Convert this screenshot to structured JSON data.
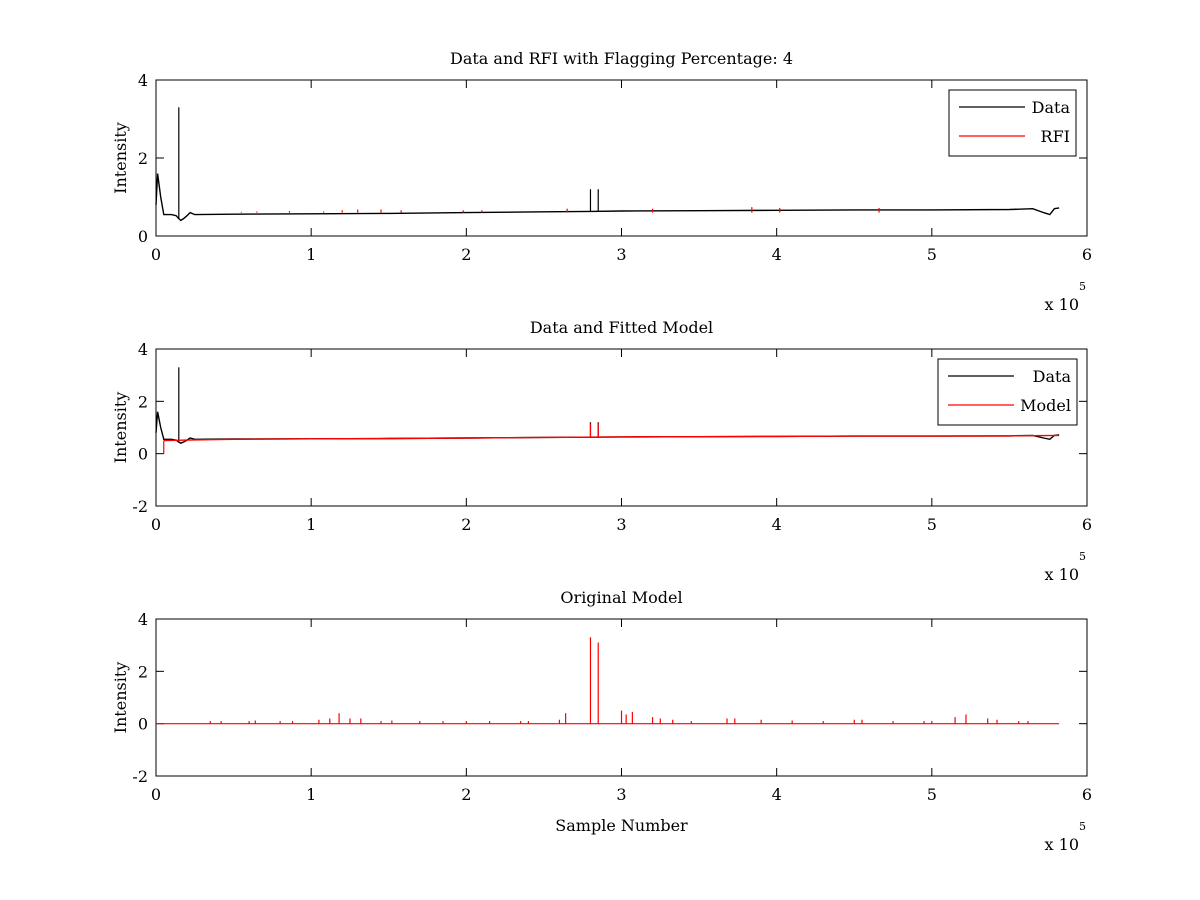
{
  "colors": {
    "data": "#000000",
    "rfi": "#ff0000",
    "axes": "#000000",
    "background": "#ffffff"
  },
  "chart_data": [
    {
      "type": "line",
      "title": "Data and RFI with Flagging Percentage: 4",
      "xlabel": "",
      "ylabel": "Intensity",
      "xlim": [
        0,
        6
      ],
      "ylim": [
        0,
        4
      ],
      "xticks": [
        "0",
        "1",
        "2",
        "3",
        "4",
        "5",
        "6"
      ],
      "yticks": [
        "0",
        "2",
        "4"
      ],
      "x_multiplier": {
        "base": "x 10",
        "exponent": "5"
      },
      "legend": {
        "position": "top-right",
        "entries": [
          "Data",
          "RFI"
        ]
      },
      "series": [
        {
          "name": "Data",
          "color": "#000000",
          "x": [
            0,
            0.01,
            0.03,
            0.05,
            0.1,
            0.13,
            0.145,
            0.16,
            0.18,
            0.2,
            0.22,
            0.25,
            0.5,
            1.0,
            1.5,
            2.0,
            2.5,
            2.8,
            3.0,
            3.5,
            4.0,
            4.5,
            5.0,
            5.5,
            5.65,
            5.72,
            5.76,
            5.79,
            5.82
          ],
          "y": [
            0.8,
            1.6,
            1.0,
            0.55,
            0.55,
            0.52,
            0.45,
            0.4,
            0.45,
            0.52,
            0.6,
            0.55,
            0.56,
            0.57,
            0.58,
            0.6,
            0.62,
            0.63,
            0.64,
            0.65,
            0.66,
            0.67,
            0.67,
            0.68,
            0.7,
            0.6,
            0.55,
            0.7,
            0.72
          ],
          "spikes": [
            {
              "x": 0.147,
              "y": 3.3
            },
            {
              "x": 2.8,
              "y": 1.2
            },
            {
              "x": 2.85,
              "y": 1.2
            }
          ]
        },
        {
          "name": "RFI",
          "color": "#ff0000",
          "spikes": [
            {
              "x": 0.55,
              "y": 0.62
            },
            {
              "x": 0.65,
              "y": 0.63
            },
            {
              "x": 0.86,
              "y": 0.64
            },
            {
              "x": 1.08,
              "y": 0.63
            },
            {
              "x": 1.2,
              "y": 0.66
            },
            {
              "x": 1.3,
              "y": 0.68
            },
            {
              "x": 1.45,
              "y": 0.68
            },
            {
              "x": 1.58,
              "y": 0.66
            },
            {
              "x": 1.98,
              "y": 0.66
            },
            {
              "x": 2.1,
              "y": 0.66
            },
            {
              "x": 2.65,
              "y": 0.7
            },
            {
              "x": 3.2,
              "y": 0.7
            },
            {
              "x": 3.84,
              "y": 0.74
            },
            {
              "x": 4.02,
              "y": 0.72
            },
            {
              "x": 4.66,
              "y": 0.72
            }
          ]
        }
      ]
    },
    {
      "type": "line",
      "title": "Data and Fitted Model",
      "xlabel": "",
      "ylabel": "Intensity",
      "xlim": [
        0,
        6
      ],
      "ylim": [
        -2,
        4
      ],
      "xticks": [
        "0",
        "1",
        "2",
        "3",
        "4",
        "5",
        "6"
      ],
      "yticks": [
        "-2",
        "0",
        "2",
        "4"
      ],
      "x_multiplier": {
        "base": "x 10",
        "exponent": "5"
      },
      "legend": {
        "position": "top-right",
        "entries": [
          "Data",
          "Model"
        ]
      },
      "series": [
        {
          "name": "Data",
          "color": "#000000",
          "x": [
            0,
            0.01,
            0.03,
            0.05,
            0.1,
            0.13,
            0.145,
            0.16,
            0.18,
            0.2,
            0.22,
            0.25,
            0.5,
            1.0,
            1.5,
            2.0,
            2.5,
            2.8,
            3.0,
            3.5,
            4.0,
            4.5,
            5.0,
            5.5,
            5.65,
            5.72,
            5.76,
            5.79,
            5.82
          ],
          "y": [
            0.8,
            1.6,
            1.0,
            0.55,
            0.55,
            0.52,
            0.45,
            0.4,
            0.45,
            0.52,
            0.6,
            0.55,
            0.56,
            0.57,
            0.58,
            0.6,
            0.62,
            0.63,
            0.64,
            0.65,
            0.66,
            0.67,
            0.67,
            0.68,
            0.7,
            0.6,
            0.55,
            0.7,
            0.72
          ],
          "spikes": [
            {
              "x": 0.147,
              "y": 3.3
            },
            {
              "x": 2.8,
              "y": 1.2
            },
            {
              "x": 2.85,
              "y": 1.2
            }
          ]
        },
        {
          "name": "Model",
          "color": "#ff0000",
          "x": [
            0.05,
            0.2,
            0.5,
            1.0,
            1.5,
            2.0,
            2.5,
            3.0,
            3.5,
            4.0,
            4.5,
            5.0,
            5.5,
            5.82
          ],
          "y": [
            0.5,
            0.52,
            0.55,
            0.57,
            0.58,
            0.6,
            0.62,
            0.64,
            0.65,
            0.66,
            0.67,
            0.67,
            0.68,
            0.7
          ],
          "spikes": [
            {
              "x": 0.05,
              "y": 0.0
            },
            {
              "x": 2.8,
              "y": 1.15
            },
            {
              "x": 2.85,
              "y": 1.15
            }
          ]
        }
      ]
    },
    {
      "type": "line",
      "title": "Original Model",
      "xlabel": "Sample Number",
      "ylabel": "Intensity",
      "xlim": [
        0,
        6
      ],
      "ylim": [
        -2,
        4
      ],
      "xticks": [
        "0",
        "1",
        "2",
        "3",
        "4",
        "5",
        "6"
      ],
      "yticks": [
        "-2",
        "0",
        "2",
        "4"
      ],
      "x_multiplier": {
        "base": "x 10",
        "exponent": "5"
      },
      "series": [
        {
          "name": "Model",
          "color": "#ff0000",
          "baseline": 0.0,
          "x_range": [
            0,
            5.82
          ],
          "spikes": [
            {
              "x": 0.35,
              "y": 0.1
            },
            {
              "x": 0.42,
              "y": 0.1
            },
            {
              "x": 0.6,
              "y": 0.1
            },
            {
              "x": 0.64,
              "y": 0.12
            },
            {
              "x": 0.8,
              "y": 0.1
            },
            {
              "x": 0.88,
              "y": 0.1
            },
            {
              "x": 1.05,
              "y": 0.15
            },
            {
              "x": 1.12,
              "y": 0.2
            },
            {
              "x": 1.18,
              "y": 0.4
            },
            {
              "x": 1.25,
              "y": 0.2
            },
            {
              "x": 1.32,
              "y": 0.2
            },
            {
              "x": 1.45,
              "y": 0.1
            },
            {
              "x": 1.52,
              "y": 0.12
            },
            {
              "x": 1.7,
              "y": 0.1
            },
            {
              "x": 1.85,
              "y": 0.1
            },
            {
              "x": 2.0,
              "y": 0.1
            },
            {
              "x": 2.15,
              "y": 0.1
            },
            {
              "x": 2.35,
              "y": 0.1
            },
            {
              "x": 2.4,
              "y": 0.1
            },
            {
              "x": 2.6,
              "y": 0.15
            },
            {
              "x": 2.64,
              "y": 0.4
            },
            {
              "x": 2.8,
              "y": 3.3
            },
            {
              "x": 2.85,
              "y": 3.1
            },
            {
              "x": 3.0,
              "y": 0.5
            },
            {
              "x": 3.03,
              "y": 0.35
            },
            {
              "x": 3.07,
              "y": 0.45
            },
            {
              "x": 3.2,
              "y": 0.25
            },
            {
              "x": 3.25,
              "y": 0.2
            },
            {
              "x": 3.33,
              "y": 0.15
            },
            {
              "x": 3.45,
              "y": 0.1
            },
            {
              "x": 3.68,
              "y": 0.2
            },
            {
              "x": 3.73,
              "y": 0.2
            },
            {
              "x": 3.9,
              "y": 0.15
            },
            {
              "x": 4.1,
              "y": 0.12
            },
            {
              "x": 4.3,
              "y": 0.1
            },
            {
              "x": 4.5,
              "y": 0.15
            },
            {
              "x": 4.55,
              "y": 0.15
            },
            {
              "x": 4.75,
              "y": 0.1
            },
            {
              "x": 4.95,
              "y": 0.1
            },
            {
              "x": 5.0,
              "y": 0.1
            },
            {
              "x": 5.15,
              "y": 0.25
            },
            {
              "x": 5.22,
              "y": 0.35
            },
            {
              "x": 5.36,
              "y": 0.2
            },
            {
              "x": 5.42,
              "y": 0.15
            },
            {
              "x": 5.56,
              "y": 0.1
            },
            {
              "x": 5.62,
              "y": 0.1
            }
          ]
        }
      ]
    }
  ]
}
